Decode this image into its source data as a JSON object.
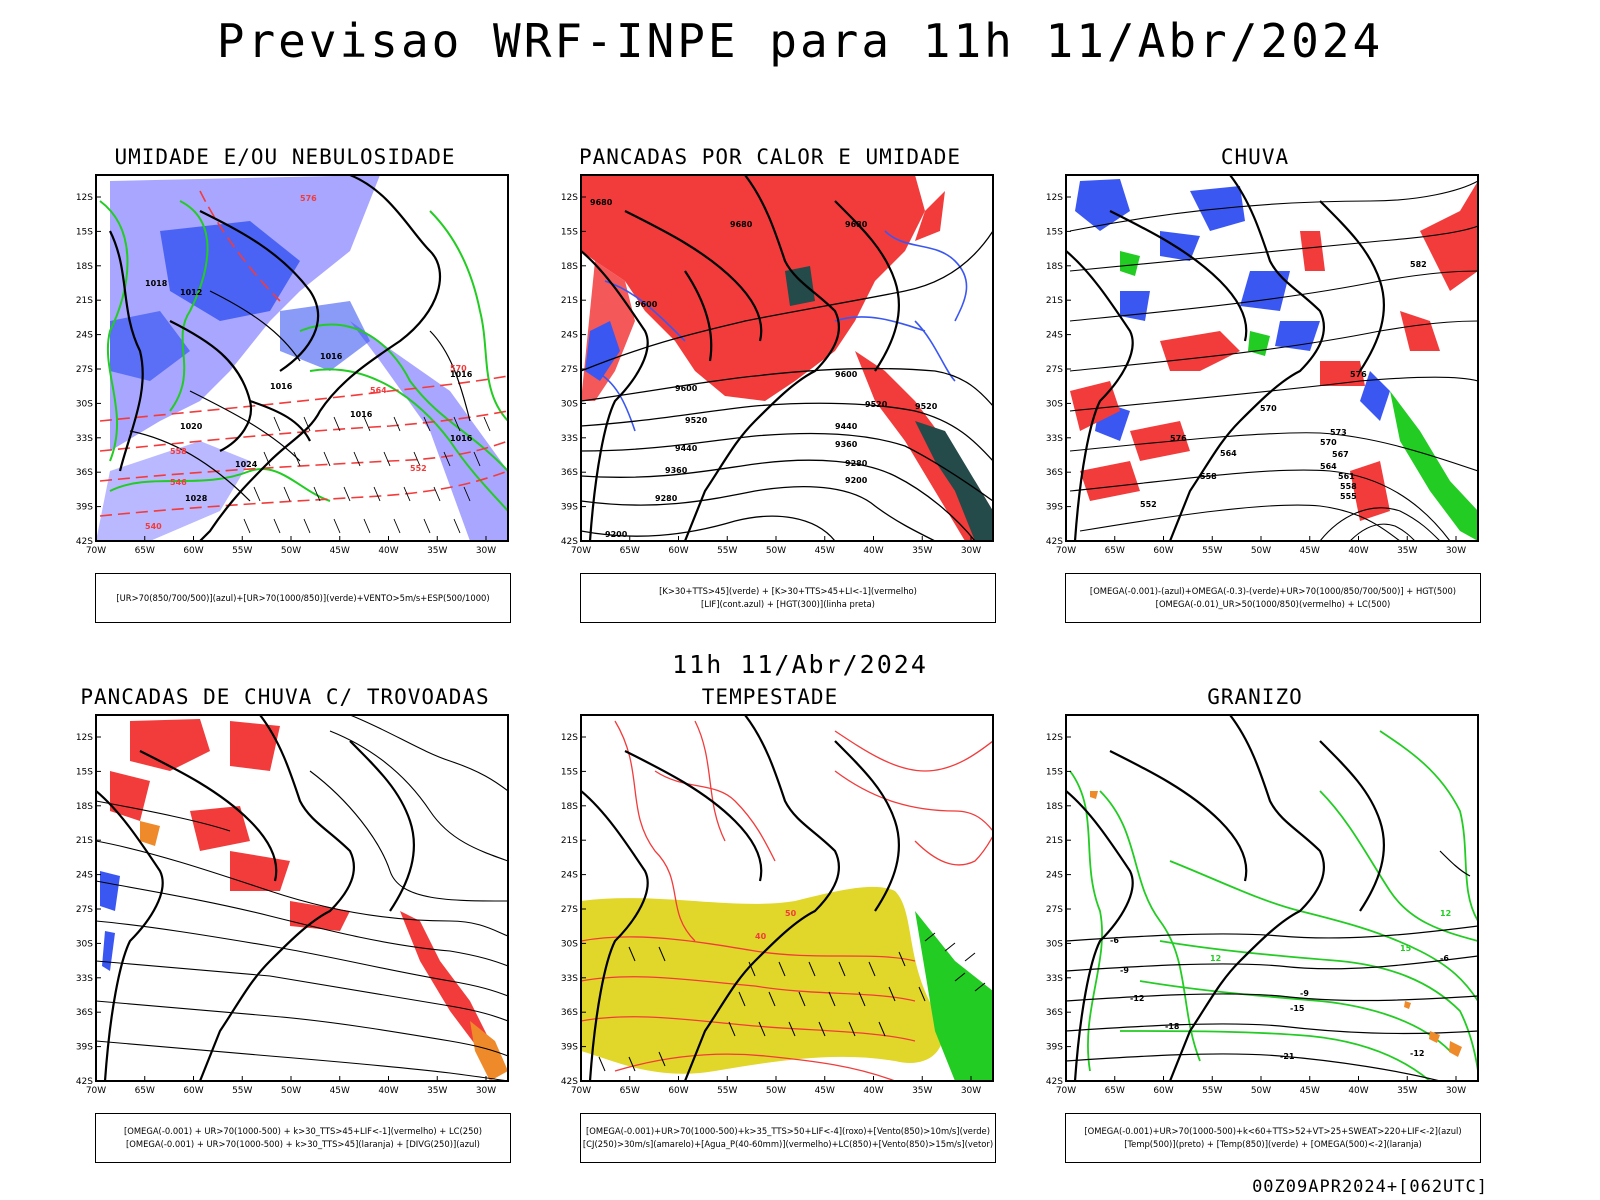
{
  "header": {
    "title": "Previsao WRF-INPE  para 11h 11/Abr/2024",
    "subtitle": "11h 11/Abr/2024",
    "footer": "00Z09APR2024+[062UTC]"
  },
  "axes": {
    "lat_ticks": [
      "12S",
      "15S",
      "18S",
      "21S",
      "24S",
      "27S",
      "30S",
      "33S",
      "36S",
      "39S",
      "42S"
    ],
    "lon_ticks": [
      "70W",
      "65W",
      "60W",
      "55W",
      "50W",
      "45W",
      "40W",
      "35W",
      "30W"
    ]
  },
  "colors": {
    "blue": "#3b57f2",
    "lavender": "#a9a6ff",
    "green": "#22cc22",
    "red": "#f23b3b",
    "orange": "#ef8a2a",
    "yellow": "#e1d72b",
    "darkteal": "#244a4a",
    "contour": "#000000"
  },
  "panels": [
    {
      "id": "umidade",
      "title": "UMIDADE E/OU NEBULOSIDADE",
      "legend": [
        "[UR>70(850/700/500)](azul)+[UR>70(1000/850)](verde)+VENTO>5m/s+ESP(500/1000)"
      ],
      "labels": [
        "1012",
        "1016",
        "1016",
        "1016",
        "1018",
        "1020",
        "1024",
        "1028",
        "1016",
        "1016",
        "576",
        "570",
        "564",
        "558",
        "552",
        "546",
        "540"
      ]
    },
    {
      "id": "pancadas-calor",
      "title": "PANCADAS POR CALOR E UMIDADE",
      "legend": [
        "[K>30+TTS>45](verde) + [K>30+TTS>45+LI<-1](vermelho)",
        "[LIF](cont.azul) + [HGT(300)](linha preta)"
      ],
      "labels": [
        "9680",
        "9680",
        "9680",
        "9600",
        "9600",
        "9520",
        "9440",
        "9360",
        "9280",
        "9200",
        "9520",
        "9440",
        "9360",
        "9280",
        "9200",
        "9600",
        "9520"
      ]
    },
    {
      "id": "chuva",
      "title": "CHUVA",
      "legend": [
        "[OMEGA(-0.001)-(azul)+OMEGA(-0.3)-(verde)+UR>70(1000/850/700/500)] + HGT(500)",
        "[OMEGA(-0.01)_UR>50(1000/850)(vermelho) + LC(500)"
      ],
      "labels": [
        "582",
        "576",
        "570",
        "564",
        "558",
        "552",
        "576",
        "573",
        "570",
        "567",
        "564",
        "561",
        "558",
        "555"
      ]
    },
    {
      "id": "trovoadas",
      "title": "PANCADAS DE CHUVA C/ TROVOADAS",
      "legend": [
        "[OMEGA(-0.001) + UR>70(1000-500) + k>30_TTS>45+LIF<-1](vermelho) + LC(250)",
        "[OMEGA(-0.001) + UR>70(1000-500) + k>30_TTS>45](laranja) + [DIVG(250)](azul)"
      ],
      "labels": []
    },
    {
      "id": "tempestade",
      "title": "TEMPESTADE",
      "legend": [
        "[OMEGA(-0.001)+UR>70(1000-500)+k>35_TTS>50+LIF<-4](roxo)+[Vento(850)>10m/s](verde)",
        "[CJ(250)>30m/s](amarelo)+[Agua_P(40-60mm)](vermelho)+LC(850)+[Vento(850)>15m/s](vetor)"
      ],
      "labels": [
        "50",
        "40"
      ]
    },
    {
      "id": "granizo",
      "title": "GRANIZO",
      "legend": [
        "[OMEGA(-0.001)+UR>70(1000-500)+k<60+TTS>52+VT>25+SWEAT>220+LIF<-2](azul)",
        "[Temp(500)](preto) + [Temp(850)](verde) + [OMEGA(500)<-2](laranja)"
      ],
      "labels": [
        "-6",
        "-9",
        "-12",
        "-15",
        "-18",
        "-21",
        "-12",
        "-9",
        "-6",
        "12",
        "15",
        "12"
      ]
    }
  ]
}
